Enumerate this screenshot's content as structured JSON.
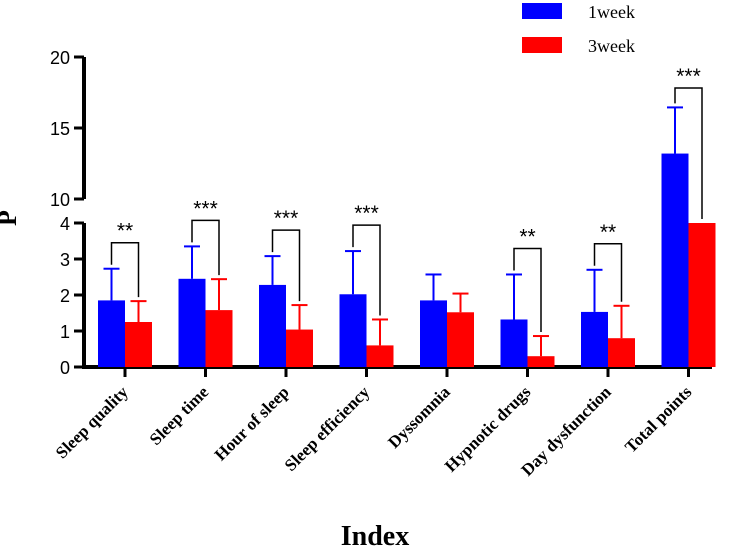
{
  "chart_data": {
    "type": "bar",
    "title": "",
    "xlabel": "Index",
    "ylabel": "P",
    "categories": [
      "Sleep quality",
      "Sleep time",
      "Hour of sleep",
      "Sleep efficiency",
      "Dyssomnia",
      "Hypnotic drugs",
      "Day dysfunction",
      "Total points"
    ],
    "series": [
      {
        "name": "1week",
        "color": "#0000ff",
        "values": [
          1.85,
          2.45,
          2.28,
          2.02,
          1.85,
          1.32,
          1.53,
          13.2
        ],
        "errors": [
          0.88,
          0.9,
          0.8,
          1.2,
          0.72,
          1.25,
          1.17,
          3.25
        ]
      },
      {
        "name": "3week",
        "color": "#ff0000",
        "values": [
          1.25,
          1.58,
          1.04,
          0.6,
          1.52,
          0.3,
          0.8,
          4.0
        ],
        "errors": [
          0.58,
          0.86,
          0.68,
          0.72,
          0.52,
          0.56,
          0.9,
          null
        ]
      }
    ],
    "significance": [
      "**",
      "***",
      "***",
      "***",
      "",
      "**",
      "**",
      "***"
    ],
    "axis_break": {
      "lower_range": [
        0,
        4
      ],
      "upper_range": [
        10,
        20
      ]
    },
    "lower_ticks": [
      0,
      1,
      2,
      3,
      4
    ],
    "upper_ticks": [
      10,
      15,
      20
    ],
    "legend_position": "top-right"
  }
}
